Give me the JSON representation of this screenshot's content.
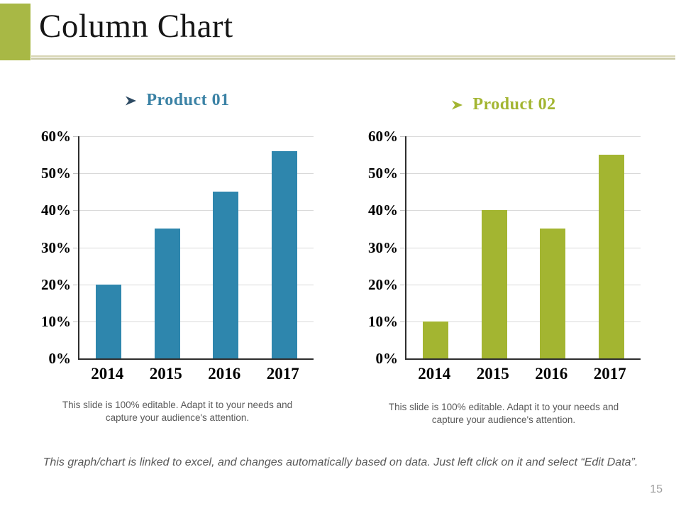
{
  "slide": {
    "title": "Column Chart",
    "page_number": "15",
    "footer_note": "This graph/chart is linked to excel, and changes automatically based on data. Just left click on it and select “Edit Data”.",
    "accent_color": "#a8b845",
    "divider_color_main": "#d9d7b8",
    "divider_color_thin": "#c8c7a4"
  },
  "panels": [
    {
      "heading": "Product 01",
      "bullet_icon": "right-arrowhead",
      "heading_color": "#3b82a5",
      "bullet_color": "#2d4a63",
      "caption_line1": "This slide is 100% editable. Adapt it to your needs and",
      "caption_line2": "capture your audience's attention."
    },
    {
      "heading": "Product 02",
      "bullet_icon": "right-arrowhead",
      "heading_color": "#a3b531",
      "bullet_color": "#a3b531",
      "caption_line1": "This slide is 100% editable. Adapt it to your needs and",
      "caption_line2": "capture your audience's attention."
    }
  ],
  "chart_data": [
    {
      "type": "bar",
      "title": "Product 01",
      "categories": [
        "2014",
        "2015",
        "2016",
        "2017"
      ],
      "values": [
        20,
        35,
        45,
        56
      ],
      "unit": "%",
      "xlabel": "",
      "ylabel": "",
      "ylim": [
        0,
        60
      ],
      "ytick_step": 10,
      "ytick_labels": [
        "0%",
        "10%",
        "20%",
        "30%",
        "40%",
        "50%",
        "60%"
      ],
      "grid": true,
      "legend": false,
      "bar_color": "#2e86ad"
    },
    {
      "type": "bar",
      "title": "Product 02",
      "categories": [
        "2014",
        "2015",
        "2016",
        "2017"
      ],
      "values": [
        10,
        40,
        35,
        55
      ],
      "unit": "%",
      "xlabel": "",
      "ylabel": "",
      "ylim": [
        0,
        60
      ],
      "ytick_step": 10,
      "ytick_labels": [
        "0%",
        "10%",
        "20%",
        "30%",
        "40%",
        "50%",
        "60%"
      ],
      "grid": true,
      "legend": false,
      "bar_color": "#a3b531"
    }
  ]
}
